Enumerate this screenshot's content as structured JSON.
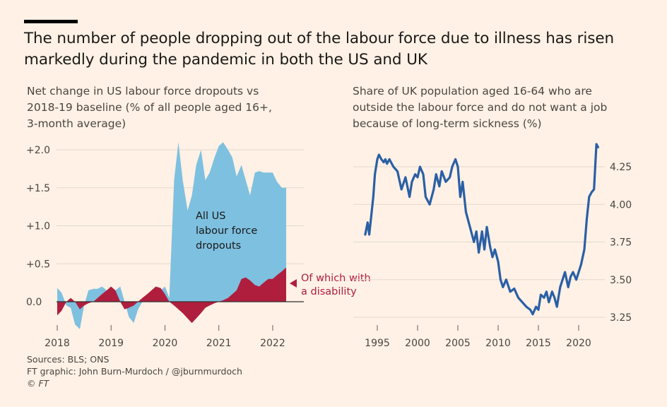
{
  "title": "The number of people dropping out of the labour force due to illness has risen markedly during the pandemic in both the US and UK",
  "left_subtitle": [
    "Net change in US labour force dropouts vs",
    "2018-19 baseline (% of all people aged 16+,",
    "3-month average)"
  ],
  "right_subtitle": [
    "Share of UK population aged 16-64 who are",
    "outside the labour force and do not want a job",
    "because of long-term sickness (%)"
  ],
  "footer": {
    "sources": "Sources: BLS; ONS",
    "graphic": "FT graphic: John Burn-Murdoch / @jburnmurdoch",
    "copyright": "© FT"
  },
  "colors": {
    "background": "#fff1e5",
    "us_all": "#7ec0e0",
    "us_disability": "#b01e3e",
    "uk_line": "#2a5fa5",
    "grid": "#e3d8cc"
  },
  "chart_data": [
    {
      "type": "area",
      "xlim": [
        2018,
        2022.5
      ],
      "ylim": [
        -0.4,
        2.3
      ],
      "y_ticks": [
        2.0,
        1.5,
        1.0,
        0.5,
        0.0
      ],
      "y_tick_labels": [
        "+2.0",
        "+1.5",
        "+1.0",
        "+0.5",
        "0.0"
      ],
      "x_ticks": [
        2018,
        2019,
        2020,
        2021,
        2022
      ],
      "x_tick_labels": [
        "2018",
        "2019",
        "2020",
        "2021",
        "2022"
      ],
      "annotations": [
        {
          "text": [
            "All US",
            "labour force",
            "dropouts"
          ]
        },
        {
          "text": [
            "Of which with",
            "a disability"
          ]
        }
      ],
      "series": [
        {
          "name": "All US labour force dropouts",
          "x": [
            2018.0,
            2018.08,
            2018.17,
            2018.25,
            2018.33,
            2018.42,
            2018.5,
            2018.58,
            2018.67,
            2018.75,
            2018.83,
            2018.92,
            2019.0,
            2019.08,
            2019.17,
            2019.25,
            2019.33,
            2019.42,
            2019.5,
            2019.58,
            2019.67,
            2019.75,
            2019.83,
            2019.92,
            2020.0,
            2020.08,
            2020.17,
            2020.25,
            2020.33,
            2020.42,
            2020.5,
            2020.58,
            2020.67,
            2020.75,
            2020.83,
            2020.92,
            2021.0,
            2021.08,
            2021.17,
            2021.25,
            2021.33,
            2021.42,
            2021.5,
            2021.58,
            2021.67,
            2021.75,
            2021.83,
            2021.92,
            2022.0,
            2022.08,
            2022.17,
            2022.25
          ],
          "values": [
            0.18,
            0.12,
            -0.05,
            -0.08,
            -0.3,
            -0.36,
            -0.05,
            0.15,
            0.17,
            0.17,
            0.2,
            0.15,
            0.1,
            0.15,
            0.2,
            0.0,
            -0.2,
            -0.28,
            -0.1,
            0.0,
            0.05,
            0.1,
            0.12,
            0.15,
            0.2,
            0.05,
            1.6,
            2.1,
            1.6,
            1.2,
            1.4,
            1.8,
            2.0,
            1.6,
            1.7,
            1.9,
            2.05,
            2.1,
            2.0,
            1.9,
            1.65,
            1.8,
            1.6,
            1.4,
            1.7,
            1.72,
            1.7,
            1.7,
            1.7,
            1.58,
            1.5,
            1.5
          ]
        },
        {
          "name": "Of which with a disability",
          "x": [
            2018.0,
            2018.08,
            2018.17,
            2018.25,
            2018.33,
            2018.42,
            2018.5,
            2018.58,
            2018.67,
            2018.75,
            2018.83,
            2018.92,
            2019.0,
            2019.08,
            2019.17,
            2019.25,
            2019.33,
            2019.42,
            2019.5,
            2019.58,
            2019.67,
            2019.75,
            2019.83,
            2019.92,
            2020.0,
            2020.08,
            2020.17,
            2020.25,
            2020.33,
            2020.42,
            2020.5,
            2020.58,
            2020.67,
            2020.75,
            2020.83,
            2020.92,
            2021.0,
            2021.08,
            2021.17,
            2021.25,
            2021.33,
            2021.42,
            2021.5,
            2021.58,
            2021.67,
            2021.75,
            2021.83,
            2021.92,
            2022.0,
            2022.08,
            2022.17,
            2022.25
          ],
          "values": [
            -0.18,
            -0.12,
            0.0,
            0.05,
            0.0,
            -0.1,
            -0.05,
            -0.02,
            0.0,
            0.05,
            0.1,
            0.15,
            0.2,
            0.15,
            0.0,
            -0.1,
            -0.08,
            -0.05,
            0.0,
            0.05,
            0.1,
            0.15,
            0.2,
            0.18,
            0.1,
            0.0,
            -0.05,
            -0.1,
            -0.15,
            -0.22,
            -0.28,
            -0.22,
            -0.15,
            -0.08,
            -0.05,
            -0.02,
            0.0,
            0.02,
            0.05,
            0.1,
            0.15,
            0.3,
            0.32,
            0.28,
            0.22,
            0.2,
            0.25,
            0.3,
            0.3,
            0.35,
            0.4,
            0.45
          ]
        }
      ]
    },
    {
      "type": "line",
      "xlim": [
        1993,
        2023
      ],
      "ylim": [
        3.2,
        4.45
      ],
      "y_ticks": [
        4.25,
        4.0,
        3.75,
        3.5,
        3.25
      ],
      "y_tick_labels": [
        "4.25",
        "4.00",
        "3.75",
        "3.50",
        "3.25"
      ],
      "x_ticks": [
        1995,
        2000,
        2005,
        2010,
        2015,
        2020
      ],
      "x_tick_labels": [
        "1995",
        "2000",
        "2005",
        "2010",
        "2015",
        "2020"
      ],
      "series": [
        {
          "name": "UK long-term sickness",
          "x": [
            1993.5,
            1993.8,
            1994.0,
            1994.2,
            1994.5,
            1994.7,
            1995.0,
            1995.2,
            1995.5,
            1995.8,
            1996.0,
            1996.2,
            1996.5,
            1997.0,
            1997.5,
            1998.0,
            1998.5,
            1999.0,
            1999.3,
            1999.7,
            2000.0,
            2000.3,
            2000.7,
            2001.0,
            2001.5,
            2002.0,
            2002.3,
            2002.7,
            2003.0,
            2003.5,
            2004.0,
            2004.3,
            2004.7,
            2005.0,
            2005.3,
            2005.6,
            2006.0,
            2006.5,
            2007.0,
            2007.3,
            2007.6,
            2008.0,
            2008.3,
            2008.6,
            2009.0,
            2009.3,
            2009.6,
            2010.0,
            2010.3,
            2010.6,
            2011.0,
            2011.5,
            2012.0,
            2012.5,
            2013.0,
            2013.5,
            2014.0,
            2014.3,
            2014.7,
            2015.0,
            2015.3,
            2015.7,
            2016.0,
            2016.3,
            2016.7,
            2017.0,
            2017.3,
            2017.7,
            2018.0,
            2018.3,
            2018.7,
            2019.0,
            2019.3,
            2019.7,
            2020.0,
            2020.3,
            2020.7,
            2021.0,
            2021.3,
            2021.6,
            2021.9,
            2022.2,
            2022.4
          ],
          "values": [
            3.8,
            3.88,
            3.8,
            3.9,
            4.05,
            4.2,
            4.3,
            4.33,
            4.3,
            4.28,
            4.3,
            4.27,
            4.3,
            4.25,
            4.22,
            4.1,
            4.18,
            4.05,
            4.15,
            4.2,
            4.18,
            4.25,
            4.2,
            4.05,
            4.0,
            4.1,
            4.2,
            4.12,
            4.22,
            4.15,
            4.18,
            4.25,
            4.3,
            4.25,
            4.05,
            4.15,
            3.95,
            3.85,
            3.75,
            3.82,
            3.68,
            3.82,
            3.7,
            3.85,
            3.72,
            3.65,
            3.7,
            3.62,
            3.5,
            3.45,
            3.5,
            3.42,
            3.44,
            3.38,
            3.35,
            3.32,
            3.3,
            3.27,
            3.32,
            3.3,
            3.4,
            3.38,
            3.42,
            3.35,
            3.42,
            3.38,
            3.32,
            3.45,
            3.5,
            3.55,
            3.45,
            3.52,
            3.55,
            3.5,
            3.55,
            3.6,
            3.7,
            3.9,
            4.05,
            4.08,
            4.1,
            4.4,
            4.38
          ]
        }
      ]
    }
  ]
}
